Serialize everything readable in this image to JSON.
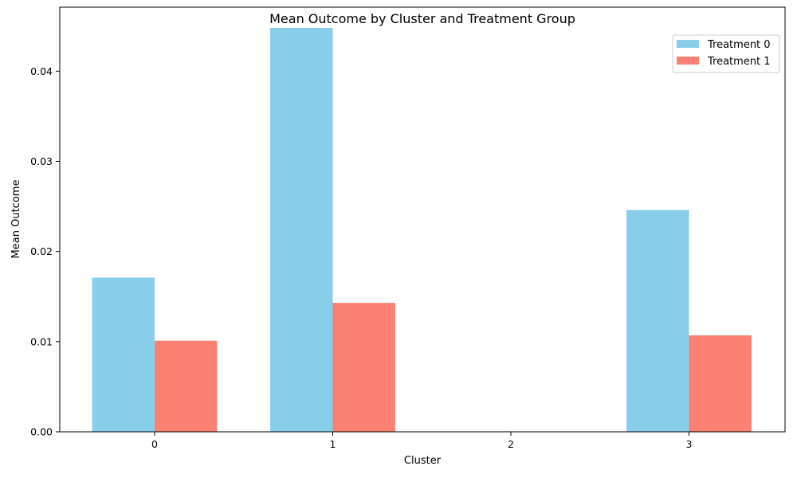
{
  "chart_data": {
    "type": "bar",
    "title": "Mean Outcome by Cluster and Treatment Group",
    "xlabel": "Cluster",
    "ylabel": "Mean Outcome",
    "categories": [
      "0",
      "1",
      "2",
      "3"
    ],
    "series": [
      {
        "name": "Treatment 0",
        "color": "#87CEEB",
        "values": [
          0.0171,
          0.0448,
          0.0,
          0.0246
        ]
      },
      {
        "name": "Treatment 1",
        "color": "#FA8072",
        "values": [
          0.0101,
          0.0143,
          0.0,
          0.0107
        ]
      }
    ],
    "ylim": [
      0,
      0.0471
    ],
    "yticks": [
      0.0,
      0.01,
      0.02,
      0.03,
      0.04
    ],
    "ytick_labels": [
      "0.00",
      "0.01",
      "0.02",
      "0.03",
      "0.04"
    ],
    "legend_position": "top-right",
    "grid": false
  }
}
